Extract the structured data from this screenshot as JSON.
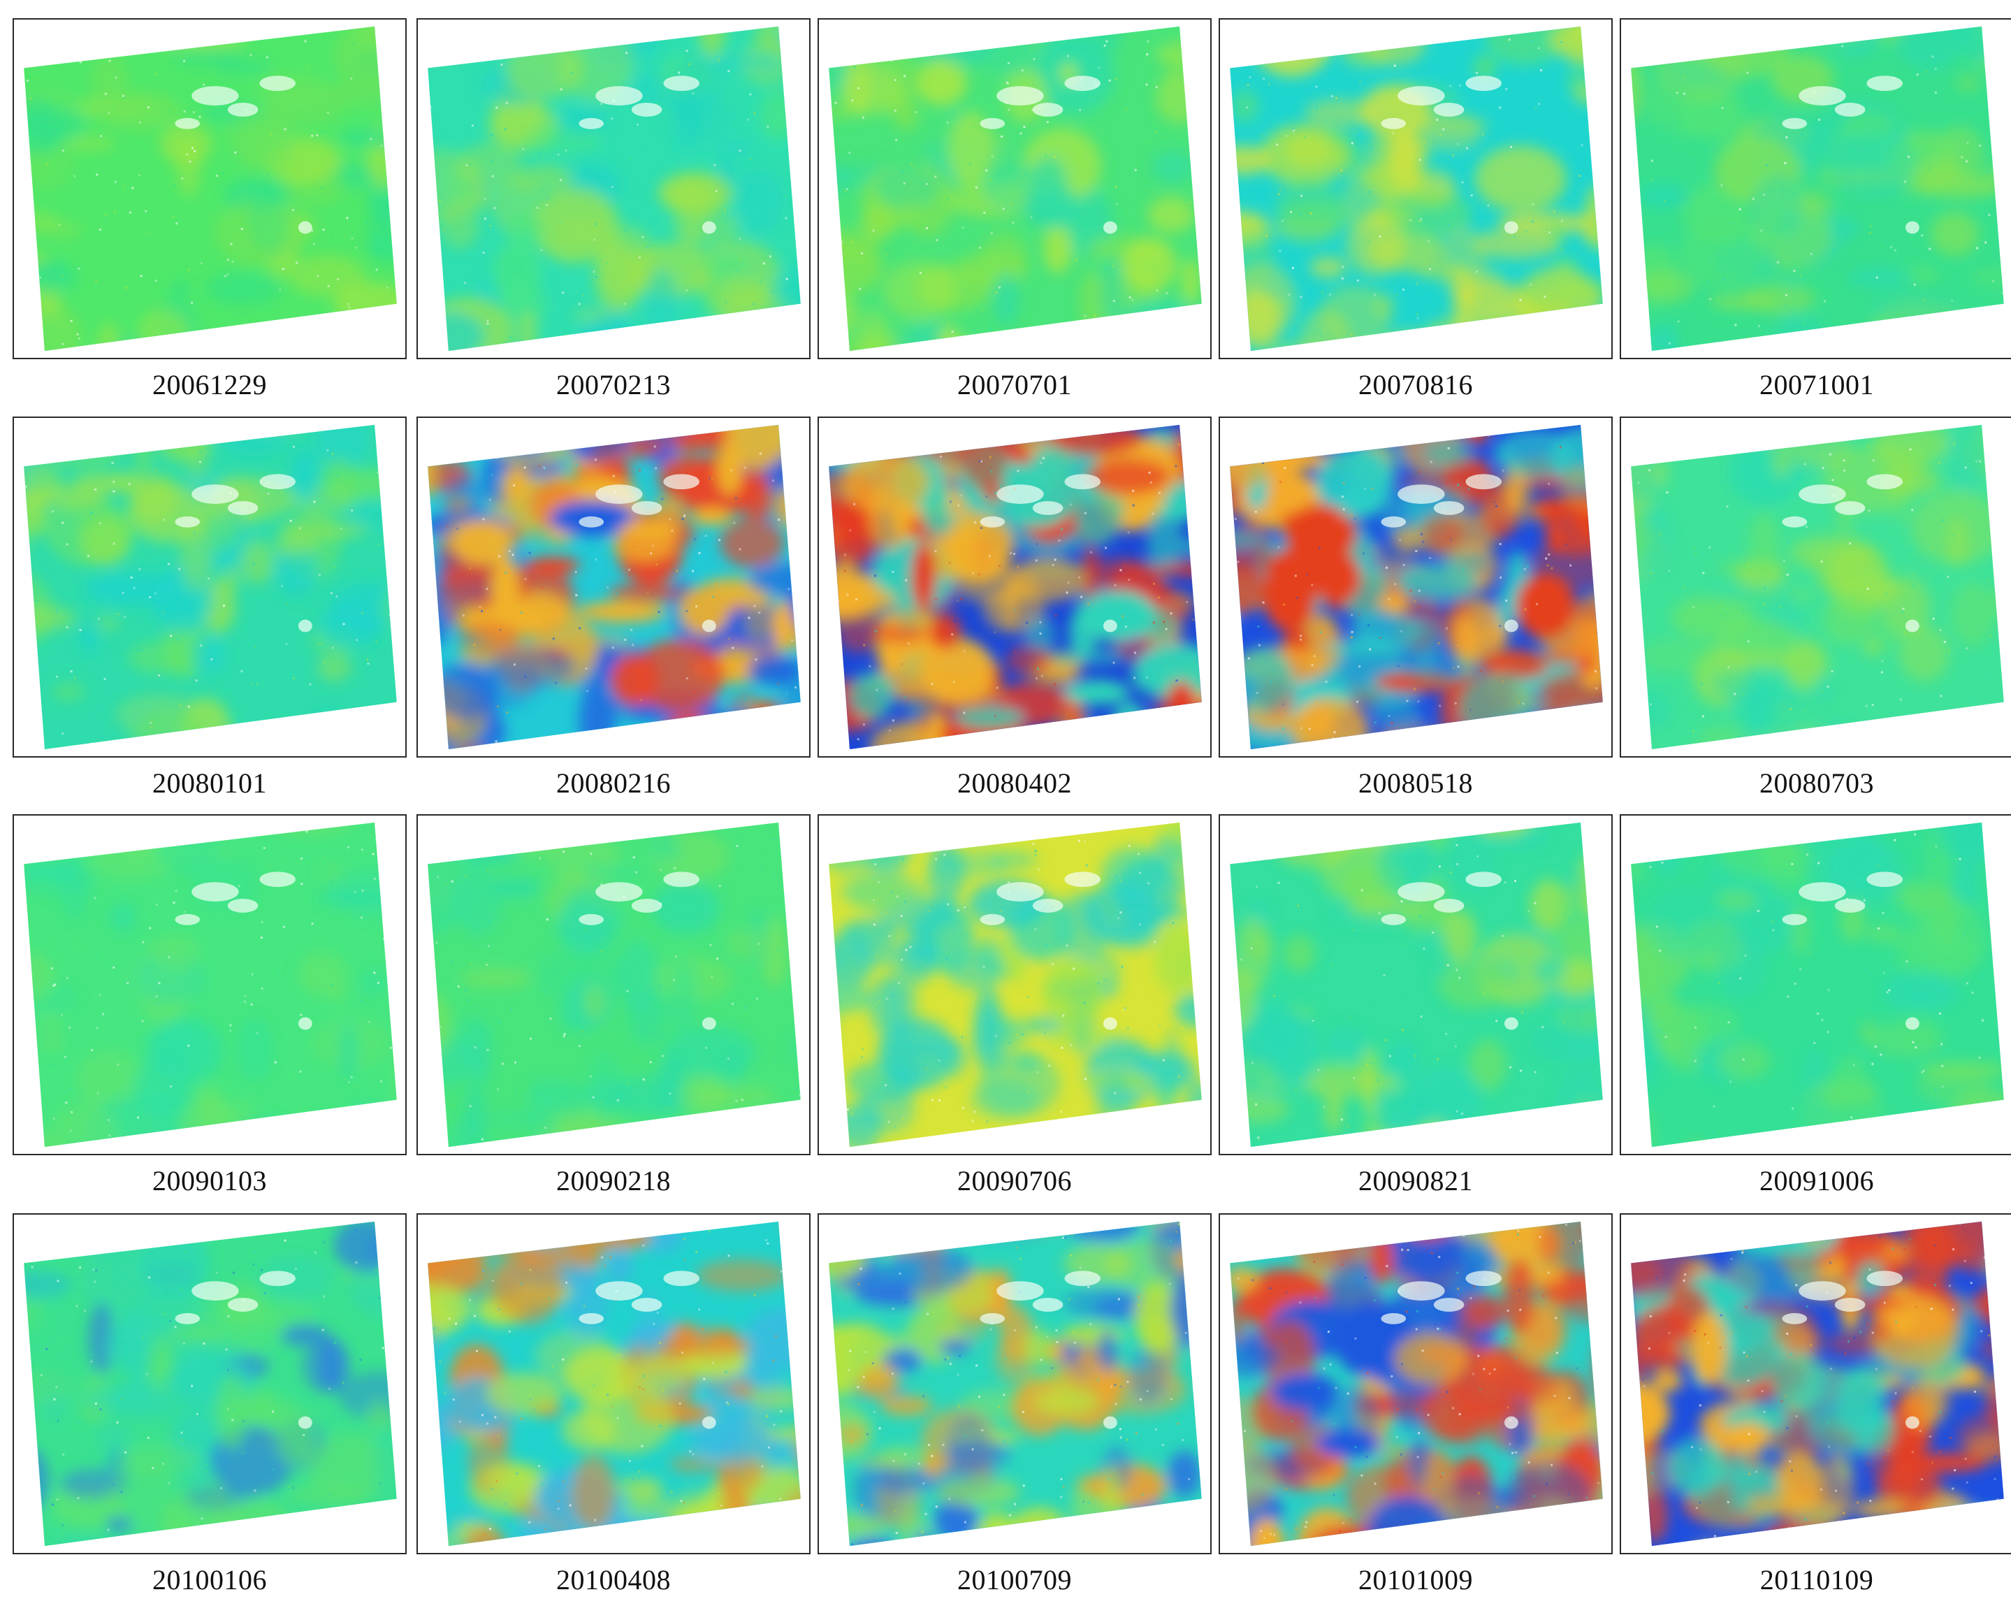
{
  "figure": {
    "panels": [
      {
        "date": "20061229",
        "palette": [
          "#4fe86a",
          "#2ee08f",
          "#a8e640",
          "#6fe45a"
        ],
        "intensity": 0.25
      },
      {
        "date": "20070213",
        "palette": [
          "#2fdfb0",
          "#49e683",
          "#9fe34a",
          "#1fd4c8"
        ],
        "intensity": 0.3
      },
      {
        "date": "20070701",
        "palette": [
          "#49e47b",
          "#8ee447",
          "#bde83c",
          "#2fdca8"
        ],
        "intensity": 0.3
      },
      {
        "date": "20070816",
        "palette": [
          "#1fd6cf",
          "#63e36a",
          "#b9e43f",
          "#dde336"
        ],
        "intensity": 0.35
      },
      {
        "date": "20071001",
        "palette": [
          "#38e08e",
          "#56e474",
          "#8ae352",
          "#26d9b8"
        ],
        "intensity": 0.25
      },
      {
        "date": "20080101",
        "palette": [
          "#2fdcab",
          "#6ae464",
          "#9fe44b",
          "#1cd4cf"
        ],
        "intensity": 0.3
      },
      {
        "date": "20080216",
        "palette": [
          "#22c9d6",
          "#f0b32c",
          "#1f5fe0",
          "#e8462a"
        ],
        "intensity": 0.9
      },
      {
        "date": "20080402",
        "palette": [
          "#1a47d8",
          "#e43a24",
          "#f2b12a",
          "#2fd4b9"
        ],
        "intensity": 1.0
      },
      {
        "date": "20080518",
        "palette": [
          "#1c4fe0",
          "#e5401f",
          "#f4ab2b",
          "#29cfc6"
        ],
        "intensity": 1.0
      },
      {
        "date": "20080703",
        "palette": [
          "#3fe29a",
          "#6ee465",
          "#9fe349",
          "#27dab6"
        ],
        "intensity": 0.25
      },
      {
        "date": "20090103",
        "palette": [
          "#46e681",
          "#34e39a",
          "#6ae56a",
          "#2cdfa9"
        ],
        "intensity": 0.15
      },
      {
        "date": "20090218",
        "palette": [
          "#48e57d",
          "#36e198",
          "#7ee35e",
          "#2bdcad"
        ],
        "intensity": 0.15
      },
      {
        "date": "20090706",
        "palette": [
          "#d8e437",
          "#9fe44b",
          "#2fd9b8",
          "#1fd2d0"
        ],
        "intensity": 0.35
      },
      {
        "date": "20090821",
        "palette": [
          "#34df9f",
          "#79e45d",
          "#b2e444",
          "#29d9b6"
        ],
        "intensity": 0.3
      },
      {
        "date": "20091006",
        "palette": [
          "#34e096",
          "#53e479",
          "#2adab4",
          "#7ae35d"
        ],
        "intensity": 0.2
      },
      {
        "date": "20100106",
        "palette": [
          "#3be18f",
          "#5fe46e",
          "#2cd8b7",
          "#2f7fe0"
        ],
        "intensity": 0.3
      },
      {
        "date": "20100408",
        "palette": [
          "#21d3cc",
          "#3fb7e4",
          "#c2e53d",
          "#e88a2c"
        ],
        "intensity": 0.6
      },
      {
        "date": "20100709",
        "palette": [
          "#2bd7bc",
          "#b7e43f",
          "#f1a42c",
          "#2a6ee2"
        ],
        "intensity": 0.65
      },
      {
        "date": "20101009",
        "palette": [
          "#29cfc6",
          "#1f59de",
          "#f3b02c",
          "#e4482b"
        ],
        "intensity": 0.85
      },
      {
        "date": "20110109",
        "palette": [
          "#1d4fe0",
          "#e24229",
          "#f3b02b",
          "#2bd2bd"
        ],
        "intensity": 0.95
      }
    ]
  }
}
